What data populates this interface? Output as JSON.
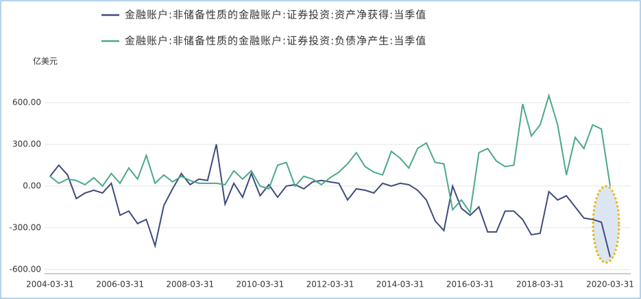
{
  "chart_data": {
    "type": "line",
    "unit_label": "亿美元",
    "categories": [
      "2004-03-31",
      null,
      null,
      null,
      null,
      null,
      null,
      null,
      "2006-03-31",
      null,
      null,
      null,
      null,
      null,
      null,
      null,
      "2008-03-31",
      null,
      null,
      null,
      null,
      null,
      null,
      null,
      "2010-03-31",
      null,
      null,
      null,
      null,
      null,
      null,
      null,
      "2012-03-31",
      null,
      null,
      null,
      null,
      null,
      null,
      null,
      "2014-03-31",
      null,
      null,
      null,
      null,
      null,
      null,
      null,
      "2016-03-31",
      null,
      null,
      null,
      null,
      null,
      null,
      null,
      "2018-03-31",
      null,
      null,
      null,
      null,
      null,
      null,
      null,
      "2020-03-31"
    ],
    "series": [
      {
        "name": "金融账户:非储备性质的金融账户:证券投资:资产净获得:当季值",
        "color": "#3d4a7c",
        "values": [
          70,
          150,
          80,
          -90,
          -50,
          -30,
          -50,
          20,
          -210,
          -180,
          -270,
          -240,
          -430,
          -140,
          -20,
          90,
          10,
          50,
          40,
          300,
          -130,
          20,
          -80,
          90,
          -70,
          10,
          -80,
          0,
          10,
          -20,
          30,
          40,
          30,
          20,
          -100,
          -20,
          -30,
          -50,
          20,
          0,
          20,
          10,
          -30,
          -100,
          -250,
          -320,
          0,
          -160,
          -210,
          -150,
          -330,
          -330,
          -180,
          -180,
          -240,
          -350,
          -340,
          -40,
          -100,
          -70,
          -150,
          -230,
          -240,
          -260,
          -510
        ]
      },
      {
        "name": "金融账户:非储备性质的金融账户:证券投资:负债净产生:当季值",
        "color": "#4aa889",
        "values": [
          70,
          20,
          50,
          40,
          10,
          60,
          0,
          90,
          20,
          130,
          50,
          220,
          20,
          80,
          30,
          70,
          40,
          20,
          20,
          20,
          10,
          110,
          50,
          110,
          0,
          -20,
          150,
          170,
          0,
          70,
          50,
          10,
          60,
          100,
          160,
          240,
          140,
          100,
          80,
          250,
          200,
          130,
          270,
          310,
          170,
          160,
          -170,
          -100,
          -190,
          240,
          270,
          180,
          140,
          150,
          590,
          360,
          440,
          650,
          440,
          80,
          350,
          270,
          440,
          410,
          0
        ]
      }
    ],
    "ylim": [
      -630,
      740
    ],
    "yticks": [
      {
        "value": 600,
        "label": "600.00"
      },
      {
        "value": 300,
        "label": "300.00"
      },
      {
        "value": 0,
        "label": "0.00"
      },
      {
        "value": -300,
        "label": "-300.00"
      },
      {
        "value": -600,
        "label": "-600.00"
      }
    ],
    "grid": true
  }
}
